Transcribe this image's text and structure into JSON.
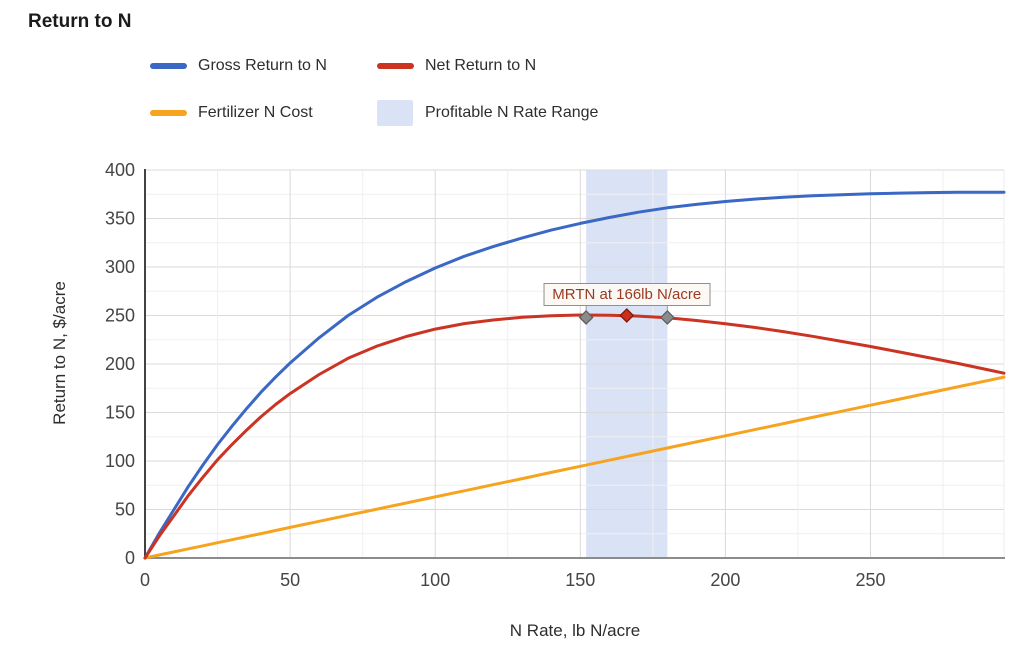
{
  "title": "Return to N",
  "legend": {
    "items": [
      {
        "label": "Gross Return to N",
        "color": "#3a68c4",
        "type": "line"
      },
      {
        "label": "Net Return to N",
        "color": "#cb3322",
        "type": "line"
      },
      {
        "label": "Fertilizer N Cost",
        "color": "#f6a41f",
        "type": "line"
      },
      {
        "label": "Profitable N Rate Range",
        "color": "#dae3f6",
        "type": "area"
      }
    ]
  },
  "chart_data": {
    "type": "line",
    "title": "Return to N",
    "xlabel": "N Rate, lb N/acre",
    "ylabel": "Return to N, $/acre",
    "xlim": [
      0,
      296
    ],
    "ylim": [
      0,
      400
    ],
    "x_ticks": [
      0,
      50,
      100,
      150,
      200,
      250
    ],
    "y_ticks": [
      0,
      50,
      100,
      150,
      200,
      250,
      300,
      350,
      400
    ],
    "minor_grid_step": 25,
    "grid": true,
    "legend_position": "top",
    "x": [
      0,
      5,
      10,
      15,
      20,
      25,
      30,
      35,
      40,
      45,
      50,
      60,
      70,
      80,
      90,
      100,
      110,
      120,
      130,
      140,
      150,
      160,
      170,
      180,
      190,
      200,
      210,
      220,
      230,
      240,
      250,
      260,
      270,
      280,
      290,
      296
    ],
    "series": [
      {
        "name": "Gross Return to N",
        "color": "#3a68c4",
        "values": [
          0,
          26,
          50,
          74,
          96,
          117,
          136,
          154,
          171,
          186.5,
          201,
          227,
          250,
          269,
          285,
          299,
          311,
          321,
          330,
          338,
          345,
          351,
          356.5,
          361,
          364.5,
          367.5,
          370,
          372,
          373.5,
          374.5,
          375.5,
          376.2,
          376.7,
          377,
          377,
          377
        ]
      },
      {
        "name": "Net Return to N",
        "color": "#cb3322",
        "values": [
          0,
          22.9,
          43.7,
          64.6,
          83.4,
          101.3,
          117.1,
          131.9,
          145.8,
          158.2,
          169.5,
          189.2,
          205.9,
          218.6,
          228.3,
          236,
          241.7,
          245.4,
          248.1,
          249.8,
          250.5,
          250.2,
          249.4,
          247.6,
          244.8,
          241.5,
          237.7,
          233.4,
          228.6,
          223.3,
          218,
          212.4,
          206.6,
          200.6,
          194.3,
          190.5
        ]
      },
      {
        "name": "Fertilizer N Cost",
        "color": "#f6a41f",
        "values": [
          0,
          3.2,
          6.3,
          9.5,
          12.6,
          15.8,
          18.9,
          22.1,
          25.2,
          28.4,
          31.5,
          37.8,
          44.1,
          50.4,
          56.7,
          63,
          69.3,
          75.6,
          81.9,
          88.2,
          94.5,
          100.8,
          107.1,
          113.4,
          119.7,
          126,
          132.3,
          138.6,
          144.9,
          151.2,
          157.5,
          163.8,
          170.1,
          176.4,
          182.7,
          186.5
        ]
      }
    ],
    "band": {
      "label": "Profitable N Rate Range",
      "from": 152,
      "to": 180,
      "color": "#dae3f6"
    },
    "annotation": {
      "text": "MRTN at 166lb N/acre",
      "mrtn_rate": 166,
      "label_x": 166,
      "markers": [
        {
          "x": 152,
          "y": 248,
          "fill": "#8b8b8b",
          "stroke": "#5f5f5f"
        },
        {
          "x": 166,
          "y": 250,
          "fill": "#cb2f1b",
          "stroke": "#7e1a0e"
        },
        {
          "x": 180,
          "y": 248,
          "fill": "#8b8b8b",
          "stroke": "#5f5f5f"
        }
      ],
      "leader_xs": [
        152,
        180
      ]
    }
  }
}
